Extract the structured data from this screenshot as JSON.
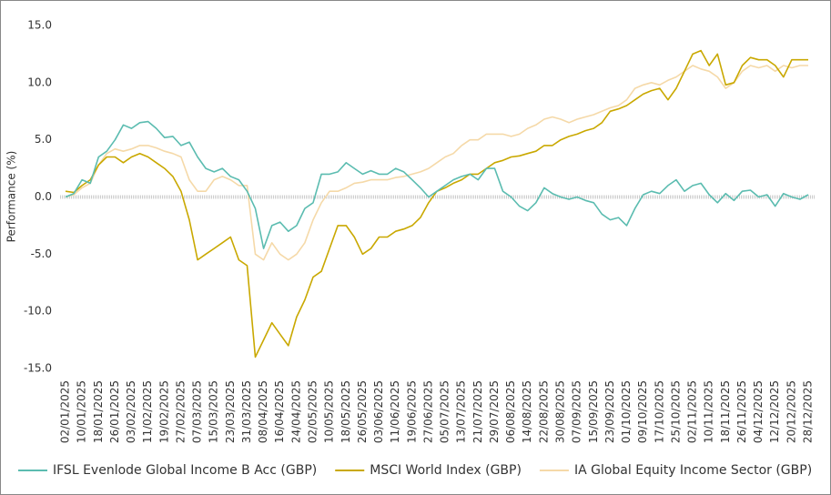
{
  "chart_data": {
    "type": "line",
    "y_label": "Performance (%)",
    "x": [
      "02/01/2025",
      "06/01/2025",
      "10/01/2025",
      "14/01/2025",
      "18/01/2025",
      "22/01/2025",
      "26/01/2025",
      "30/01/2025",
      "03/02/2025",
      "07/02/2025",
      "11/02/2025",
      "15/02/2025",
      "19/02/2025",
      "23/02/2025",
      "27/02/2025",
      "03/03/2025",
      "07/03/2025",
      "11/03/2025",
      "15/03/2025",
      "19/03/2025",
      "23/03/2025",
      "27/03/2025",
      "31/03/2025",
      "04/04/2025",
      "08/04/2025",
      "12/04/2025",
      "16/04/2025",
      "20/04/2025",
      "24/04/2025",
      "28/04/2025",
      "02/05/2025",
      "06/05/2025",
      "10/05/2025",
      "14/05/2025",
      "18/05/2025",
      "22/05/2025",
      "26/05/2025",
      "30/05/2025",
      "03/06/2025",
      "07/06/2025",
      "11/06/2025",
      "15/06/2025",
      "19/06/2025",
      "23/06/2025",
      "27/06/2025",
      "01/07/2025",
      "05/07/2025",
      "09/07/2025",
      "13/07/2025",
      "17/07/2025",
      "21/07/2025",
      "25/07/2025",
      "29/07/2025",
      "02/08/2025",
      "06/08/2025",
      "10/08/2025",
      "14/08/2025",
      "18/08/2025",
      "22/08/2025",
      "26/08/2025",
      "30/08/2025",
      "03/09/2025",
      "07/09/2025",
      "11/09/2025",
      "15/09/2025",
      "19/09/2025",
      "23/09/2025",
      "27/09/2025",
      "01/10/2025",
      "05/10/2025",
      "09/10/2025",
      "13/10/2025",
      "17/10/2025",
      "21/10/2025",
      "25/10/2025",
      "29/10/2025",
      "02/11/2025",
      "06/11/2025",
      "10/11/2025",
      "14/11/2025",
      "18/11/2025",
      "22/11/2025",
      "26/11/2025",
      "30/11/2025",
      "04/12/2025",
      "08/12/2025",
      "12/12/2025",
      "16/12/2025",
      "20/12/2025",
      "24/12/2025",
      "28/12/2025"
    ],
    "series": [
      {
        "name": "IFSL Evenlode Global Income B Acc (GBP)",
        "color": "#5bbcb0",
        "values": [
          0.0,
          0.3,
          1.5,
          1.2,
          3.5,
          4.0,
          5.0,
          6.3,
          6.0,
          6.5,
          6.6,
          6.0,
          5.2,
          5.3,
          4.5,
          4.8,
          3.5,
          2.5,
          2.2,
          2.5,
          1.8,
          1.5,
          0.5,
          -1.0,
          -4.5,
          -2.5,
          -2.2,
          -3.0,
          -2.5,
          -1.0,
          -0.5,
          2.0,
          2.0,
          2.2,
          3.0,
          2.5,
          2.0,
          2.3,
          2.0,
          2.0,
          2.5,
          2.2,
          1.5,
          0.8,
          0.0,
          0.5,
          1.0,
          1.5,
          1.8,
          2.0,
          1.5,
          2.5,
          2.5,
          0.5,
          0.0,
          -0.8,
          -1.2,
          -0.5,
          0.8,
          0.3,
          0.0,
          -0.2,
          0.0,
          -0.3,
          -0.5,
          -1.5,
          -2.0,
          -1.8,
          -2.5,
          -1.0,
          0.2,
          0.5,
          0.3,
          1.0,
          1.5,
          0.5,
          1.0,
          1.2,
          0.2,
          -0.5,
          0.3,
          -0.3,
          0.5,
          0.6,
          0.0,
          0.2,
          -0.8,
          0.3,
          0.0,
          -0.2,
          0.2
        ]
      },
      {
        "name": "MSCI World Index (GBP)",
        "color": "#c9a800",
        "values": [
          0.5,
          0.4,
          1.0,
          1.5,
          2.8,
          3.5,
          3.5,
          3.0,
          3.5,
          3.8,
          3.5,
          3.0,
          2.5,
          1.8,
          0.5,
          -2.0,
          -5.5,
          -5.0,
          -4.5,
          -4.0,
          -3.5,
          -5.5,
          -6.0,
          -14.0,
          -12.5,
          -11.0,
          -12.0,
          -13.0,
          -10.5,
          -9.0,
          -7.0,
          -6.5,
          -4.5,
          -2.5,
          -2.5,
          -3.5,
          -5.0,
          -4.5,
          -3.5,
          -3.5,
          -3.0,
          -2.8,
          -2.5,
          -1.8,
          -0.5,
          0.5,
          0.8,
          1.2,
          1.5,
          2.0,
          2.0,
          2.5,
          3.0,
          3.2,
          3.5,
          3.6,
          3.8,
          4.0,
          4.5,
          4.5,
          5.0,
          5.3,
          5.5,
          5.8,
          6.0,
          6.5,
          7.5,
          7.7,
          8.0,
          8.5,
          9.0,
          9.3,
          9.5,
          8.5,
          9.5,
          11.0,
          12.5,
          12.8,
          11.5,
          12.5,
          9.8,
          10.0,
          11.5,
          12.2,
          12.0,
          12.0,
          11.5,
          10.5,
          12.0,
          12.0,
          12.0
        ]
      },
      {
        "name": "IA Global Equity Income Sector (GBP)",
        "color": "#f5d9a8",
        "values": [
          0.0,
          0.2,
          0.8,
          1.2,
          2.8,
          3.8,
          4.2,
          4.0,
          4.2,
          4.5,
          4.5,
          4.3,
          4.0,
          3.8,
          3.5,
          1.5,
          0.5,
          0.5,
          1.5,
          1.8,
          1.5,
          1.0,
          1.0,
          -5.0,
          -5.5,
          -4.0,
          -5.0,
          -5.5,
          -5.0,
          -4.0,
          -2.0,
          -0.5,
          0.5,
          0.5,
          0.8,
          1.2,
          1.3,
          1.5,
          1.5,
          1.5,
          1.7,
          1.8,
          2.0,
          2.2,
          2.5,
          3.0,
          3.5,
          3.8,
          4.5,
          5.0,
          5.0,
          5.5,
          5.5,
          5.5,
          5.3,
          5.5,
          6.0,
          6.3,
          6.8,
          7.0,
          6.8,
          6.5,
          6.8,
          7.0,
          7.2,
          7.5,
          7.8,
          8.0,
          8.5,
          9.5,
          9.8,
          10.0,
          9.8,
          10.2,
          10.5,
          11.0,
          11.5,
          11.2,
          11.0,
          10.5,
          9.5,
          10.0,
          11.0,
          11.5,
          11.3,
          11.5,
          11.0,
          11.5,
          11.3,
          11.5,
          11.5
        ]
      }
    ],
    "xticks": [
      "02/01/2025",
      "10/01/2025",
      "18/01/2025",
      "26/01/2025",
      "03/02/2025",
      "11/02/2025",
      "19/02/2025",
      "27/02/2025",
      "07/03/2025",
      "15/03/2025",
      "23/03/2025",
      "31/03/2025",
      "08/04/2025",
      "16/04/2025",
      "24/04/2025",
      "02/05/2025",
      "10/05/2025",
      "18/05/2025",
      "26/05/2025",
      "03/06/2025",
      "11/06/2025",
      "19/06/2025",
      "27/06/2025",
      "05/07/2025",
      "13/07/2025",
      "21/07/2025",
      "29/07/2025",
      "06/08/2025",
      "14/08/2025",
      "22/08/2025",
      "30/08/2025",
      "07/09/2025",
      "15/09/2025",
      "23/09/2025",
      "01/10/2025",
      "09/10/2025",
      "17/10/2025",
      "25/10/2025",
      "02/11/2025",
      "10/11/2025",
      "18/11/2025",
      "26/11/2025",
      "04/12/2025",
      "12/12/2025",
      "20/12/2025",
      "28/12/2025"
    ],
    "ylim": [
      -15,
      15
    ],
    "yticks": [
      {
        "value": -15,
        "label": "-15.0"
      },
      {
        "value": -10,
        "label": "-10.0"
      },
      {
        "value": -5,
        "label": "-5.0"
      },
      {
        "value": 0,
        "label": "0.0"
      },
      {
        "value": 5,
        "label": "5.0"
      },
      {
        "value": 10,
        "label": "10.0"
      },
      {
        "value": 15,
        "label": "15.0"
      }
    ],
    "grid": false
  }
}
